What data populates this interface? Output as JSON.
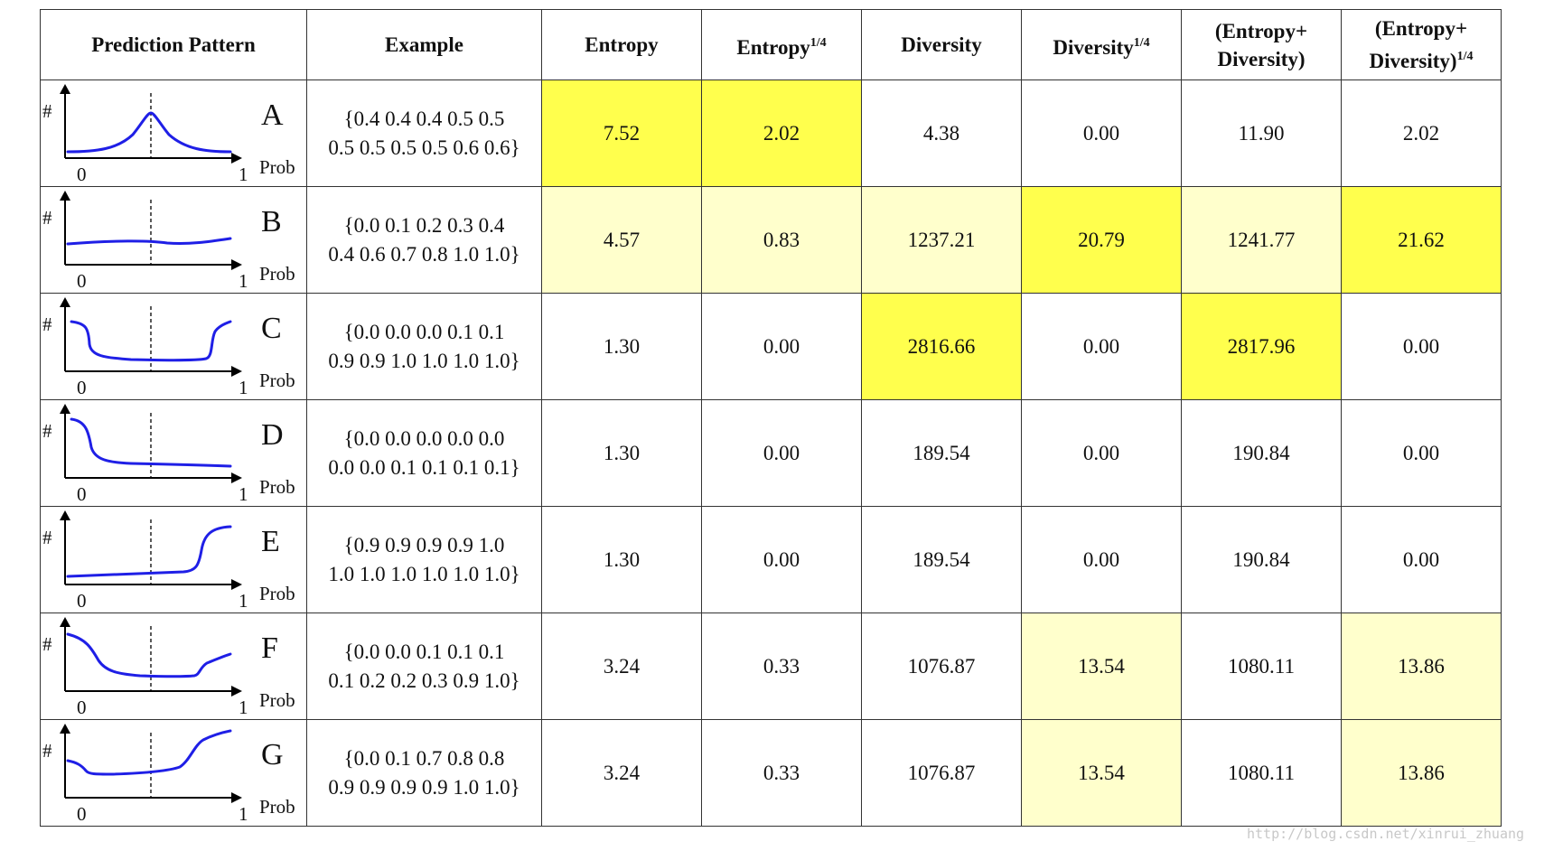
{
  "headers": {
    "pattern": "Prediction Pattern",
    "example": "Example",
    "entropy": "Entropy",
    "entropy_q": "Entropy",
    "entropy_q_sup": "1/4",
    "diversity": "Diversity",
    "diversity_q": "Diversity",
    "diversity_q_sup": "1/4",
    "sum_l1": "(Entropy+",
    "sum_l2": "Diversity)",
    "sumq_l1": "(Entropy+",
    "sumq_l2": "Diversity)",
    "sumq_sup": "1/4"
  },
  "axis_labels": {
    "y": "#",
    "x0": "0",
    "x1": "1",
    "xname": "Prob"
  },
  "highlight_colors": {
    "strong": "#ffff4d",
    "light": "#ffffcc"
  },
  "rows": [
    {
      "label": "A",
      "example_l1": "{0.4 0.4 0.4 0.5 0.5",
      "example_l2": "0.5 0.5 0.5 0.5 0.6 0.6}",
      "entropy": "7.52",
      "entropy_q": "2.02",
      "diversity": "4.38",
      "diversity_q": "0.00",
      "sum": "11.90",
      "sum_q": "2.02",
      "highlights": [
        "strong",
        "strong",
        "",
        "",
        "",
        ""
      ]
    },
    {
      "label": "B",
      "example_l1": "{0.0 0.1 0.2 0.3 0.4",
      "example_l2": "0.4 0.6 0.7 0.8 1.0 1.0}",
      "entropy": "4.57",
      "entropy_q": "0.83",
      "diversity": "1237.21",
      "diversity_q": "20.79",
      "sum": "1241.77",
      "sum_q": "21.62",
      "highlights": [
        "light",
        "light",
        "light",
        "strong",
        "light",
        "strong"
      ]
    },
    {
      "label": "C",
      "example_l1": "{0.0 0.0 0.0 0.1 0.1",
      "example_l2": "0.9 0.9 1.0 1.0 1.0 1.0}",
      "entropy": "1.30",
      "entropy_q": "0.00",
      "diversity": "2816.66",
      "diversity_q": "0.00",
      "sum": "2817.96",
      "sum_q": "0.00",
      "highlights": [
        "",
        "",
        "strong",
        "",
        "strong",
        ""
      ]
    },
    {
      "label": "D",
      "example_l1": "{0.0 0.0 0.0 0.0 0.0",
      "example_l2": "0.0 0.0 0.1 0.1 0.1 0.1}",
      "entropy": "1.30",
      "entropy_q": "0.00",
      "diversity": "189.54",
      "diversity_q": "0.00",
      "sum": "190.84",
      "sum_q": "0.00",
      "highlights": [
        "",
        "",
        "",
        "",
        "",
        ""
      ]
    },
    {
      "label": "E",
      "example_l1": "{0.9 0.9 0.9 0.9 1.0",
      "example_l2": "1.0 1.0 1.0 1.0 1.0 1.0}",
      "entropy": "1.30",
      "entropy_q": "0.00",
      "diversity": "189.54",
      "diversity_q": "0.00",
      "sum": "190.84",
      "sum_q": "0.00",
      "highlights": [
        "",
        "",
        "",
        "",
        "",
        ""
      ]
    },
    {
      "label": "F",
      "example_l1": "{0.0 0.0 0.1 0.1 0.1",
      "example_l2": "0.1 0.2 0.2 0.3 0.9 1.0}",
      "entropy": "3.24",
      "entropy_q": "0.33",
      "diversity": "1076.87",
      "diversity_q": "13.54",
      "sum": "1080.11",
      "sum_q": "13.86",
      "highlights": [
        "",
        "",
        "",
        "light",
        "",
        "light"
      ]
    },
    {
      "label": "G",
      "example_l1": "{0.0 0.1 0.7 0.8 0.8",
      "example_l2": "0.9 0.9 0.9 0.9 1.0 1.0}",
      "entropy": "3.24",
      "entropy_q": "0.33",
      "diversity": "1076.87",
      "diversity_q": "13.54",
      "sum": "1080.11",
      "sum_q": "13.86",
      "highlights": [
        "",
        "",
        "",
        "light",
        "",
        "light"
      ]
    }
  ],
  "watermark": "http://blog.csdn.net/xinrui_zhuang"
}
